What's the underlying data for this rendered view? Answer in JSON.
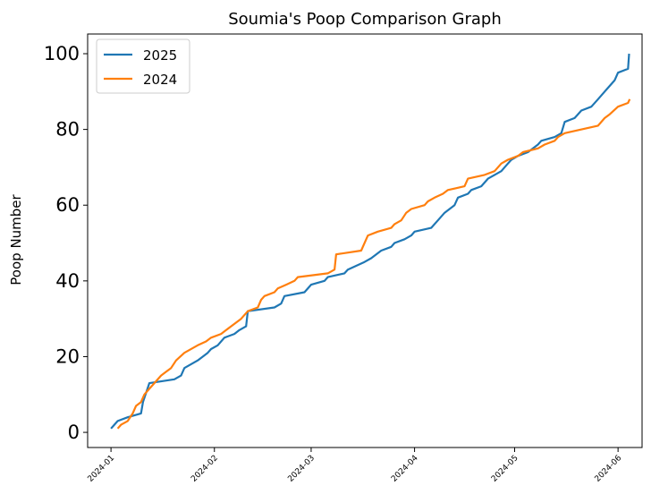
{
  "chart_data": {
    "type": "line",
    "title": "Soumia's Poop Comparison Graph",
    "ylabel": "Poop Number",
    "xlim": [
      -7,
      159.2
    ],
    "ylim": [
      -4,
      105.2
    ],
    "xticks": [
      {
        "value": 0,
        "label": "2024-01"
      },
      {
        "value": 31,
        "label": "2024-02"
      },
      {
        "value": 60,
        "label": "2024-03"
      },
      {
        "value": 91,
        "label": "2024-04"
      },
      {
        "value": 121,
        "label": "2024-05"
      },
      {
        "value": 152,
        "label": "2024-06"
      }
    ],
    "yticks": [
      0,
      20,
      40,
      60,
      80,
      100
    ],
    "legend": "upper left",
    "series": [
      {
        "name": "2025",
        "color": "#1f77b4",
        "x": [
          0,
          2,
          5,
          9,
          9.6,
          11.5,
          19,
          21,
          22,
          26,
          29,
          30,
          32,
          34,
          37,
          38.5,
          40.5,
          41,
          49,
          51,
          52,
          58,
          60,
          64,
          65,
          70,
          71,
          76,
          78,
          81,
          84,
          85,
          88,
          90,
          91,
          96,
          98,
          100,
          103,
          104,
          107,
          108,
          111,
          113,
          115,
          117,
          119,
          120,
          122,
          125,
          128,
          129,
          133,
          135,
          136,
          139,
          141,
          144,
          146,
          148,
          149,
          151,
          152,
          155,
          155.3
        ],
        "values": [
          1,
          3,
          4,
          5,
          8,
          13,
          14,
          15,
          17,
          19,
          21,
          22,
          23,
          25,
          26,
          27,
          28,
          32,
          33,
          34,
          36,
          37,
          39,
          40,
          41,
          42,
          43,
          45,
          46,
          48,
          49,
          50,
          51,
          52,
          53,
          54,
          56,
          58,
          60,
          62,
          63,
          64,
          65,
          67,
          68,
          69,
          71,
          72,
          73,
          74,
          76,
          77,
          78,
          79,
          82,
          83,
          85,
          86,
          88,
          90,
          91,
          93,
          95,
          96,
          100
        ]
      },
      {
        "name": "2024",
        "color": "#ff7f0e",
        "x": [
          2,
          3,
          5,
          6.5,
          7.5,
          9,
          10,
          11,
          13,
          15,
          16.5,
          18,
          19.5,
          22,
          26,
          28.5,
          30,
          33,
          36,
          39,
          41,
          44,
          45,
          46,
          49,
          50,
          52.5,
          55,
          56,
          65,
          67,
          67.5,
          75,
          77,
          80,
          84,
          85,
          87,
          88.5,
          90,
          94,
          95,
          97,
          99.5,
          101,
          106,
          107,
          112,
          115,
          117,
          119,
          122,
          123.5,
          128,
          130,
          133,
          134,
          136,
          146,
          148,
          149.5,
          152,
          155,
          155.5
        ],
        "values": [
          1,
          2,
          3,
          5,
          7,
          8,
          10,
          11,
          13,
          15,
          16,
          17,
          19,
          21,
          23,
          24,
          25,
          26,
          28,
          30,
          32,
          33,
          35,
          36,
          37,
          38,
          39,
          40,
          41,
          42,
          43,
          47,
          48,
          52,
          53,
          54,
          55,
          56,
          58,
          59,
          60,
          61,
          62,
          63,
          64,
          65,
          67,
          68,
          69,
          71,
          72,
          73,
          74,
          75,
          76,
          77,
          78,
          79,
          81,
          83,
          84,
          86,
          87,
          88
        ]
      }
    ]
  }
}
